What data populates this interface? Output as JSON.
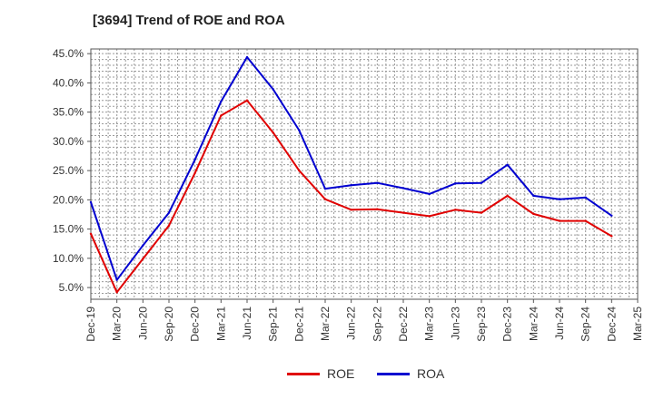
{
  "chart_data": {
    "type": "line",
    "title": "[3694]  Trend of ROE and ROA",
    "xlabel": "",
    "ylabel": "",
    "categories": [
      "Dec-19",
      "Mar-20",
      "Jun-20",
      "Sep-20",
      "Dec-20",
      "Mar-21",
      "Jun-21",
      "Sep-21",
      "Dec-21",
      "Mar-22",
      "Jun-22",
      "Sep-22",
      "Dec-22",
      "Mar-23",
      "Jun-23",
      "Sep-23",
      "Dec-23",
      "Mar-24",
      "Jun-24",
      "Sep-24",
      "Dec-24",
      "Mar-25"
    ],
    "yticks": [
      "5.0%",
      "10.0%",
      "15.0%",
      "20.0%",
      "25.0%",
      "30.0%",
      "35.0%",
      "40.0%",
      "45.0%"
    ],
    "ylim": [
      3.0,
      45.8
    ],
    "grid": true,
    "legend_position": "bottom",
    "series": [
      {
        "name": "ROE",
        "color": "#e00000",
        "values": [
          14.2,
          4.2,
          9.9,
          15.6,
          24.6,
          34.4,
          37.0,
          31.5,
          25.0,
          20.1,
          18.3,
          18.4,
          17.8,
          17.2,
          18.3,
          17.8,
          20.7,
          17.6,
          16.4,
          16.4,
          13.8,
          null
        ]
      },
      {
        "name": "ROA",
        "color": "#0000d0",
        "values": [
          19.6,
          6.3,
          12.2,
          17.8,
          26.9,
          36.8,
          44.4,
          38.9,
          31.9,
          21.9,
          22.5,
          22.9,
          22.0,
          21.0,
          22.8,
          22.9,
          26.0,
          20.7,
          20.1,
          20.4,
          17.3,
          null
        ]
      }
    ]
  }
}
